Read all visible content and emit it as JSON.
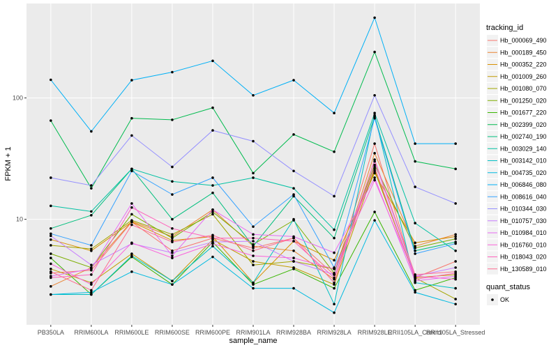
{
  "chart_data": {
    "type": "line",
    "y_label": "FPKM + 1",
    "x_label": "sample_name",
    "legend_title": "tracking_id",
    "status_title": "quant_status",
    "status_value": "OK",
    "log_y": true,
    "grid": true,
    "categories": [
      "PB350LA",
      "RRIM600LA",
      "RRIM600LE",
      "RRIM600SE",
      "RRIM600PE",
      "RRIM901LA",
      "RRIM928BA",
      "RRIM928LA",
      "RRIM928LE",
      "RRII105LA_Control",
      "RRII105LA_Stressed"
    ],
    "ylim": [
      1.35,
      600
    ],
    "yticks": [
      10,
      100
    ],
    "series": [
      {
        "name": "Hb_000069_490",
        "color": "#F8766D",
        "values": [
          3.6,
          3.8,
          9.5,
          5.5,
          7,
          5.8,
          7,
          3.5,
          42,
          3.3,
          4.5
        ]
      },
      {
        "name": "Hb_000189_450",
        "color": "#EA8331",
        "values": [
          2.8,
          4,
          9.6,
          7.2,
          12,
          6,
          5.5,
          3.2,
          35,
          6,
          7.5
        ]
      },
      {
        "name": "Hb_000352_220",
        "color": "#D89000",
        "values": [
          6.8,
          5.5,
          9.5,
          6.7,
          7.2,
          3,
          6.6,
          4.6,
          24,
          6.4,
          7.2
        ]
      },
      {
        "name": "Hb_001009_260",
        "color": "#C09B00",
        "values": [
          3.9,
          3,
          5.2,
          3.1,
          6.8,
          4.5,
          4,
          2.9,
          26,
          3.3,
          3.5
        ]
      },
      {
        "name": "Hb_001080_070",
        "color": "#A3A500",
        "values": [
          6.1,
          5.7,
          9.8,
          7.5,
          11,
          4.2,
          4.5,
          3.9,
          25,
          3.3,
          2.2
        ]
      },
      {
        "name": "Hb_001250_020",
        "color": "#7CAE00",
        "values": [
          5.2,
          4,
          11,
          7,
          11.5,
          6.2,
          9.8,
          3.6,
          28,
          5.8,
          6.9
        ]
      },
      {
        "name": "Hb_001677_220",
        "color": "#39B600",
        "values": [
          4.8,
          2.4,
          4.9,
          2.9,
          6.5,
          2.9,
          3.9,
          2.7,
          11.5,
          2.6,
          3.3
        ]
      },
      {
        "name": "Hb_002399_020",
        "color": "#00BB4E",
        "values": [
          65,
          18,
          68,
          66,
          83,
          24,
          50,
          36,
          239,
          30,
          26
        ]
      },
      {
        "name": "Hb_002740_190",
        "color": "#00BF7D",
        "values": [
          8.4,
          10.8,
          26,
          10,
          16.5,
          6,
          15.5,
          7,
          70,
          5.5,
          6.5
        ]
      },
      {
        "name": "Hb_003029_140",
        "color": "#00C1A3",
        "values": [
          12.9,
          11.6,
          26,
          20.5,
          19,
          22,
          18,
          8.2,
          75,
          9.3,
          5.5
        ]
      },
      {
        "name": "Hb_003142_010",
        "color": "#00BFC4",
        "values": [
          2.4,
          2.4,
          5,
          3.1,
          6,
          3,
          10,
          2,
          72,
          3,
          2.7
        ]
      },
      {
        "name": "Hb_004735_020",
        "color": "#00BAE0",
        "values": [
          2.4,
          2.5,
          3.7,
          2.9,
          4.9,
          2.7,
          2.7,
          1.7,
          9.8,
          2.5,
          2
        ]
      },
      {
        "name": "Hb_006846_080",
        "color": "#00B0F6",
        "values": [
          141,
          53,
          140,
          163,
          202,
          105,
          140,
          75,
          458,
          42,
          42
        ]
      },
      {
        "name": "Hb_008616_040",
        "color": "#35A2FF",
        "values": [
          7.6,
          6.1,
          25,
          16,
          22,
          8.7,
          16,
          4,
          68,
          5.2,
          6.3
        ]
      },
      {
        "name": "Hb_010344_030",
        "color": "#9590FF",
        "values": [
          22,
          19,
          49,
          27,
          54,
          44,
          25,
          15.5,
          105,
          18.5,
          13.5
        ]
      },
      {
        "name": "Hb_010757_030",
        "color": "#C77CFF",
        "values": [
          7.3,
          4.2,
          6.3,
          5.3,
          6.5,
          6.6,
          4.5,
          3.5,
          30,
          3.4,
          4
        ]
      },
      {
        "name": "Hb_010984_010",
        "color": "#E76BF3",
        "values": [
          3.4,
          3.9,
          13.5,
          5,
          12,
          7.5,
          7.2,
          5.3,
          22,
          3.1,
          3.4
        ]
      },
      {
        "name": "Hb_016760_010",
        "color": "#FA62DB",
        "values": [
          4.3,
          2.9,
          6.4,
          4.8,
          6.3,
          5,
          4.8,
          3.9,
          21,
          3.4,
          3.2
        ]
      },
      {
        "name": "Hb_018043_020",
        "color": "#FF62BC",
        "values": [
          3.3,
          3.5,
          12.5,
          8.4,
          7,
          7,
          6.6,
          3.3,
          27,
          3.2,
          3.6
        ]
      },
      {
        "name": "Hb_130589_010",
        "color": "#FF6C91",
        "values": [
          3.7,
          2.6,
          9,
          6.5,
          7.4,
          5.5,
          7,
          3,
          31,
          3.5,
          3.7
        ]
      }
    ]
  }
}
